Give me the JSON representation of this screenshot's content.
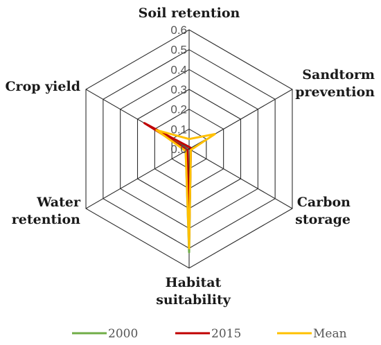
{
  "chart_data": {
    "type": "radar",
    "axes": [
      "Soil retention",
      "Sandtorm prevention",
      "Carbon storage",
      "Habitat suitability",
      "Water retention",
      "Crop yield"
    ],
    "axis_label_lines": [
      [
        "Soil retention"
      ],
      [
        "Sandtorm",
        "prevention"
      ],
      [
        "Carbon",
        "storage"
      ],
      [
        "Habitat",
        "suitability"
      ],
      [
        "Water",
        "retention"
      ],
      [
        "Crop yield"
      ]
    ],
    "rlim": [
      0,
      0.6
    ],
    "ticks": [
      0.0,
      0.1,
      0.2,
      0.3,
      0.4,
      0.5,
      0.6
    ],
    "tick_labels": [
      "0.0",
      "0.1",
      "0.2",
      "0.3",
      "0.4",
      "0.5",
      "0.6"
    ],
    "grid": true,
    "legend_position": "bottom",
    "series": [
      {
        "name": "2000",
        "color": "#70AD47",
        "values": [
          0.01,
          0.01,
          0.01,
          0.52,
          0.02,
          0.13
        ]
      },
      {
        "name": "2015",
        "color": "#C00000",
        "values": [
          0.01,
          0.01,
          0.01,
          0.46,
          0.01,
          0.26
        ]
      },
      {
        "name": "Mean",
        "color": "#FFC000",
        "values": [
          0.05,
          0.15,
          0.01,
          0.5,
          0.02,
          0.19
        ]
      }
    ]
  }
}
